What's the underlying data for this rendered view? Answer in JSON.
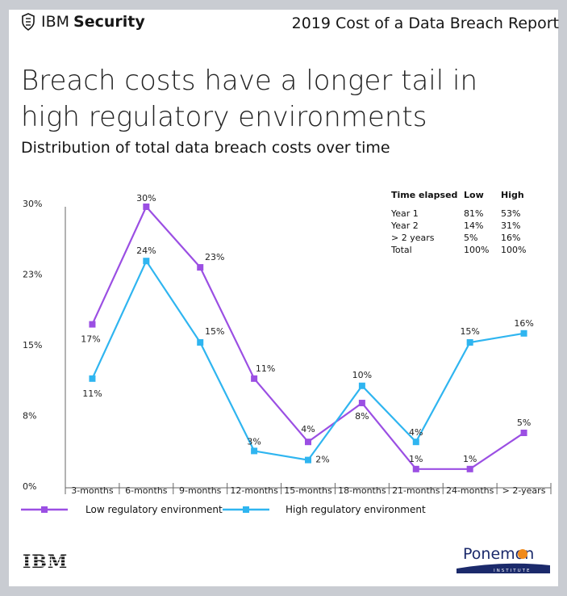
{
  "header": {
    "brand_light": "IBM",
    "brand_bold": "Security",
    "report_title": "2019 Cost of a Data Breach Report"
  },
  "title": "Breach costs have a longer tail in high regulatory environments",
  "subtitle": "Distribution of total data breach costs over time",
  "colors": {
    "low": "#9b4fe3",
    "high": "#2fb5f0",
    "background": "#c9ccd2"
  },
  "chart_data": {
    "type": "line",
    "categories": [
      "3-months",
      "6-months",
      "9-months",
      "12-months",
      "15-months",
      "18-months",
      "21-months",
      "24-months",
      "> 2-years"
    ],
    "y_ticks": [
      "0%",
      "8%",
      "15%",
      "23%",
      "30%"
    ],
    "ylim": [
      0,
      30
    ],
    "grid": false,
    "legend_position": "bottom-left",
    "series": [
      {
        "name": "Low regulatory environment",
        "color": "#9b4fe3",
        "values": [
          17,
          30,
          23.3,
          11,
          4,
          8.3,
          1,
          1,
          5
        ],
        "labels": [
          "17%",
          "30%",
          "23%",
          "11%",
          "4%",
          "8%",
          "1%",
          "1%",
          "5%"
        ]
      },
      {
        "name": "High regulatory environment",
        "color": "#2fb5f0",
        "values": [
          11,
          24,
          15,
          3,
          2,
          10.2,
          4,
          15,
          16
        ],
        "labels": [
          "11%",
          "24%",
          "15%",
          "3%",
          "2%",
          "10%",
          "4%",
          "15%",
          "16%"
        ]
      }
    ],
    "inset_table": {
      "headers": [
        "Time elapsed",
        "Low",
        "High"
      ],
      "rows": [
        [
          "Year 1",
          "81%",
          "53%"
        ],
        [
          "Year 2",
          "14%",
          "31%"
        ],
        [
          "> 2 years",
          "5%",
          "16%"
        ],
        [
          "Total",
          "100%",
          "100%"
        ]
      ]
    }
  },
  "footer": {
    "logo_left": "IBM",
    "logo_right": "Ponemon",
    "logo_right_sub": "INSTITUTE"
  }
}
